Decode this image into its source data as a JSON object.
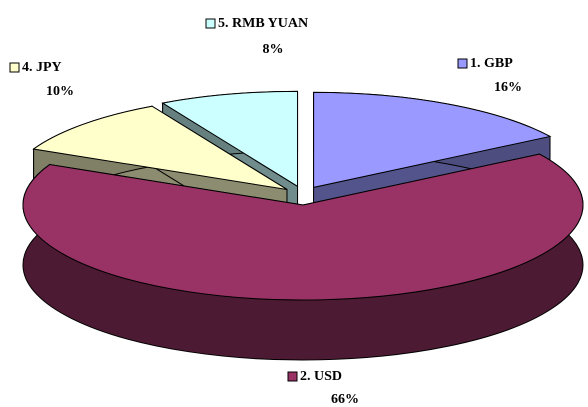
{
  "chart_data": {
    "type": "pie",
    "categories": [
      "1.  GBP",
      "2.  USD",
      "4.  JPY",
      "5. RMB YUAN"
    ],
    "values": [
      16,
      66,
      10,
      8
    ],
    "value_labels": [
      "16%",
      "66%",
      "10%",
      "8%"
    ],
    "colors": [
      "#9999ff",
      "#993366",
      "#ffffcc",
      "#ccffff"
    ]
  }
}
